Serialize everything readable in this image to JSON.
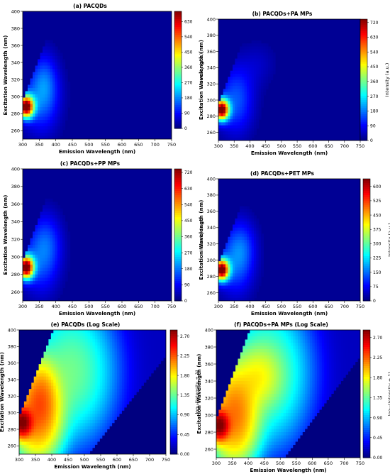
{
  "chart_data": [
    {
      "type": "heatmap",
      "panel_label": "(a)",
      "title": "PACQDs",
      "xlabel": "Emission Wavelength (nm)",
      "ylabel": "Excitation Wavelength (nm)",
      "xlim": [
        300,
        750
      ],
      "ylim": [
        250,
        400
      ],
      "xticks": [
        300,
        350,
        400,
        450,
        500,
        550,
        600,
        650,
        700,
        750
      ],
      "yticks": [
        260,
        280,
        300,
        320,
        340,
        360,
        380,
        400
      ],
      "scale": "linear",
      "colorbar": {
        "label": "Intensity (a.u.)",
        "ticks": [
          0,
          90,
          180,
          270,
          360,
          450,
          540,
          630
        ],
        "max": 690
      },
      "peaks": [
        {
          "em": 310,
          "ex": 288,
          "value": 690,
          "sem": 16,
          "sex": 9
        },
        {
          "em": 355,
          "ex": 300,
          "value": 150,
          "sem": 40,
          "sex": 30
        },
        {
          "em": 370,
          "ex": 320,
          "value": 60,
          "sem": 25,
          "sex": 22
        }
      ],
      "background": 5
    },
    {
      "type": "heatmap",
      "panel_label": "(b)",
      "title": "PACQDs+PA MPs",
      "xlabel": "Emission Wavelength (nm)",
      "ylabel": "Excitation Wavelength (nm)",
      "xlim": [
        300,
        750
      ],
      "ylim": [
        250,
        400
      ],
      "xticks": [
        300,
        350,
        400,
        450,
        500,
        550,
        600,
        650,
        700,
        750
      ],
      "yticks": [
        260,
        280,
        300,
        320,
        340,
        360,
        380,
        400
      ],
      "scale": "linear",
      "colorbar": {
        "label": "Intensity (a.u.)",
        "ticks": [
          0,
          90,
          180,
          270,
          360,
          450,
          540,
          630,
          720
        ],
        "max": 740
      },
      "peaks": [
        {
          "em": 310,
          "ex": 288,
          "value": 740,
          "sem": 16,
          "sex": 9
        },
        {
          "em": 355,
          "ex": 300,
          "value": 150,
          "sem": 40,
          "sex": 30
        },
        {
          "em": 430,
          "ex": 345,
          "value": 40,
          "sem": 40,
          "sex": 20
        }
      ],
      "background": 5
    },
    {
      "type": "heatmap",
      "panel_label": "(c)",
      "title": "PACQDs+PP MPs",
      "xlabel": "Emission Wavelength (nm)",
      "ylabel": "Excitation Wavelength (nm)",
      "xlim": [
        300,
        750
      ],
      "ylim": [
        250,
        400
      ],
      "xticks": [
        300,
        350,
        400,
        450,
        500,
        550,
        600,
        650,
        700,
        750
      ],
      "yticks": [
        260,
        280,
        300,
        320,
        340,
        360,
        380,
        400
      ],
      "scale": "linear",
      "colorbar": {
        "label": "Intensity (a.u.)",
        "ticks": [
          0,
          90,
          180,
          270,
          360,
          450,
          540,
          630,
          720
        ],
        "max": 740
      },
      "peaks": [
        {
          "em": 310,
          "ex": 288,
          "value": 740,
          "sem": 16,
          "sex": 9
        },
        {
          "em": 355,
          "ex": 300,
          "value": 150,
          "sem": 40,
          "sex": 30
        },
        {
          "em": 380,
          "ex": 320,
          "value": 55,
          "sem": 30,
          "sex": 22
        }
      ],
      "background": 5
    },
    {
      "type": "heatmap",
      "panel_label": "(d)",
      "title": "PACQDs+PET MPs",
      "xlabel": "Emission Wavelength (nm)",
      "ylabel": "Excitation Wavelength (nm)",
      "xlim": [
        300,
        750
      ],
      "ylim": [
        250,
        400
      ],
      "xticks": [
        300,
        350,
        400,
        450,
        500,
        550,
        600,
        650,
        700,
        750
      ],
      "yticks": [
        260,
        280,
        300,
        320,
        340,
        360,
        380,
        400
      ],
      "scale": "linear",
      "colorbar": {
        "label": "Intensity (a.u.)",
        "ticks": [
          0,
          75,
          150,
          225,
          300,
          375,
          450,
          525,
          600
        ],
        "max": 640
      },
      "peaks": [
        {
          "em": 310,
          "ex": 288,
          "value": 640,
          "sem": 16,
          "sex": 9
        },
        {
          "em": 355,
          "ex": 300,
          "value": 140,
          "sem": 40,
          "sex": 30
        },
        {
          "em": 380,
          "ex": 320,
          "value": 50,
          "sem": 30,
          "sex": 22
        }
      ],
      "background": 5
    },
    {
      "type": "heatmap",
      "panel_label": "(e)",
      "title": "PACQDs  (Log Scale)",
      "xlabel": "Emission Wavelength (nm)",
      "ylabel": "Excitation Wavelength (nm)",
      "xlim": [
        300,
        750
      ],
      "ylim": [
        250,
        400
      ],
      "xticks": [
        300,
        350,
        400,
        450,
        500,
        550,
        600,
        650,
        700,
        750
      ],
      "yticks": [
        260,
        280,
        300,
        320,
        340,
        360,
        380,
        400
      ],
      "scale": "log10",
      "colorbar": {
        "label": "log₁₀(Intensity + 1)",
        "ticks": [
          "0.00",
          "0.45",
          "0.90",
          "1.35",
          "1.80",
          "2.25",
          "2.70"
        ],
        "max": 2.84
      },
      "peaks": [
        {
          "em": 310,
          "ex": 288,
          "value": 690,
          "sem": 16,
          "sex": 9
        },
        {
          "em": 355,
          "ex": 300,
          "value": 150,
          "sem": 40,
          "sex": 30
        },
        {
          "em": 370,
          "ex": 320,
          "value": 60,
          "sem": 25,
          "sex": 22
        },
        {
          "em": 460,
          "ex": 350,
          "value": 22,
          "sem": 70,
          "sex": 45
        }
      ],
      "background": 0.5
    },
    {
      "type": "heatmap",
      "panel_label": "(f)",
      "title": "PACQDs+PA MPs  (Log Scale)",
      "xlabel": "Emission Wavelength (nm)",
      "ylabel": "Excitation Wavelength (nm)",
      "xlim": [
        300,
        750
      ],
      "ylim": [
        250,
        400
      ],
      "xticks": [
        300,
        350,
        400,
        450,
        500,
        550,
        600,
        650,
        700,
        750
      ],
      "yticks": [
        260,
        280,
        300,
        320,
        340,
        360,
        380,
        400
      ],
      "scale": "log10",
      "colorbar": {
        "label": "log₁₀(Intensity + 1)",
        "ticks": [
          "0.00",
          "0.45",
          "0.90",
          "1.35",
          "1.80",
          "2.25",
          "2.70"
        ],
        "max": 2.87
      },
      "peaks": [
        {
          "em": 310,
          "ex": 288,
          "value": 740,
          "sem": 16,
          "sex": 9
        },
        {
          "em": 355,
          "ex": 300,
          "value": 150,
          "sem": 40,
          "sex": 30
        },
        {
          "em": 430,
          "ex": 345,
          "value": 40,
          "sem": 40,
          "sex": 20
        },
        {
          "em": 460,
          "ex": 350,
          "value": 22,
          "sem": 70,
          "sex": 45
        }
      ],
      "background": 0.5
    }
  ]
}
